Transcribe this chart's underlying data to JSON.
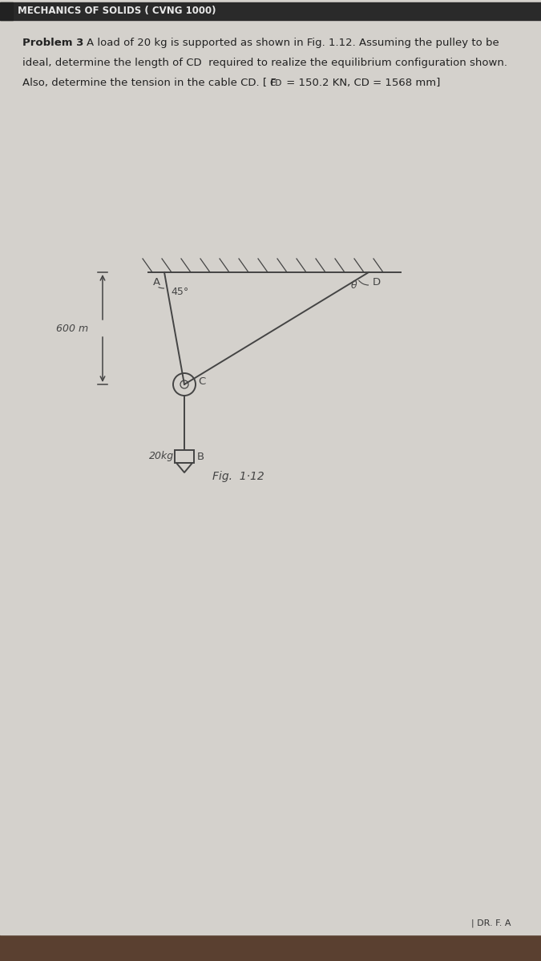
{
  "bg_color": "#c8c5c0",
  "paper_color": "#d4d1cc",
  "header_bg": "#2a2a2a",
  "header_text": "MECHANICS OF SOLIDS ( CVNG 1000)",
  "header_text_color": "#e8e8e8",
  "header_fontsize": 8.5,
  "problem_label": "Problem 3",
  "line1": "A load of 20 kg is supported as shown in Fig. 1.12. Assuming the pulley to be",
  "line2": "ideal, determine the length of CD  required to realize the equilibrium configuration shown.",
  "line3_pre": "Also, determine the tension in the cable CD. [ F",
  "line3_sub": "CD",
  "line3_post": " = 150.2 KN, CD = 1568 mm]",
  "footer_text": "| DR. F. A",
  "fig_caption": "Fig.  1·12",
  "label_600m": "600 m",
  "label_45deg": "45°",
  "label_theta": "θ",
  "label_A": "A",
  "label_B": "B",
  "label_C": "C",
  "label_D": "D",
  "label_20kg": "20kg",
  "line_color": "#444444",
  "text_color": "#222222",
  "bottom_color": "#5a4030",
  "tab_color": "#222222"
}
